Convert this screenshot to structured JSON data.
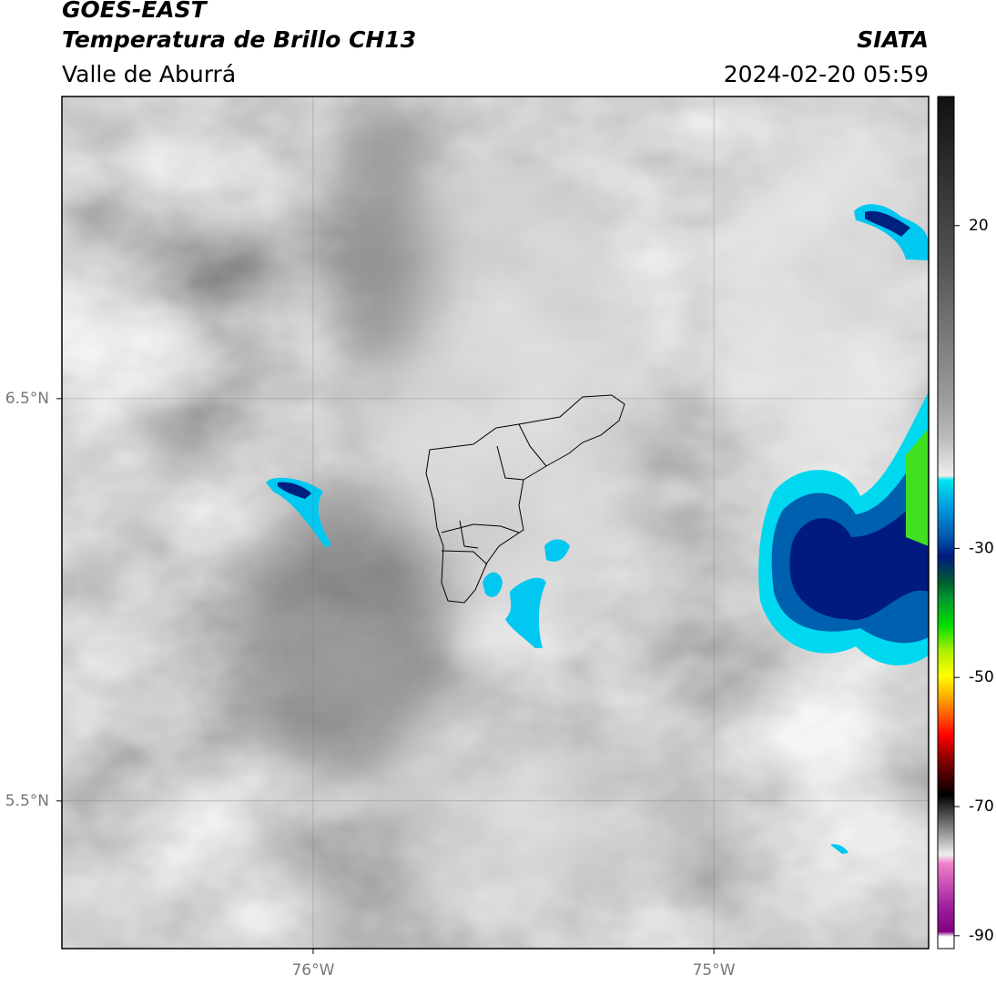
{
  "header": {
    "title": "GOES-EAST",
    "subtitle": "Temperatura de Brillo CH13",
    "region": "Valle de Aburrá",
    "source": "SIATA",
    "datetime": "2024-02-20 05:59"
  },
  "map": {
    "xlim": [
      -76.627,
      -74.464
    ],
    "ylim": [
      5.133,
      7.251
    ],
    "xticks": [
      {
        "value": -76,
        "label": "76°W"
      },
      {
        "value": -75,
        "label": "75°W"
      }
    ],
    "yticks": [
      {
        "value": 6.5,
        "label": "6.5°N"
      },
      {
        "value": 5.5,
        "label": "5.5°N"
      }
    ],
    "grid": true
  },
  "colorbar": {
    "lim": [
      -92,
      40
    ],
    "ticks": [
      20,
      -30,
      -50,
      -70,
      -90
    ]
  }
}
